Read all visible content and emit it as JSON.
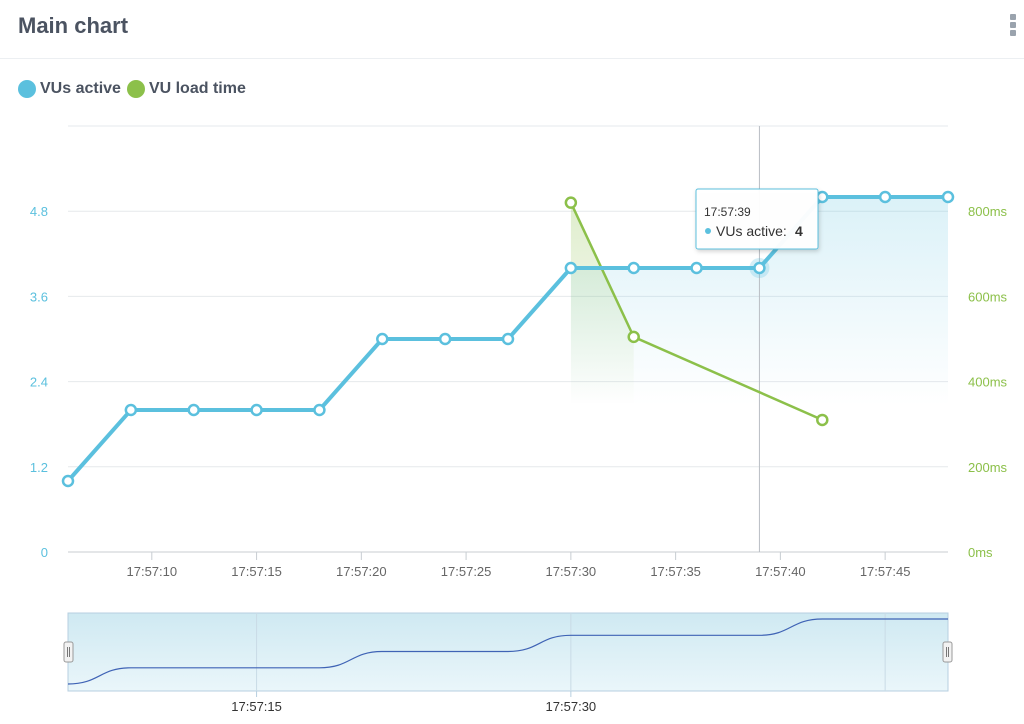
{
  "header": {
    "title": "Main chart",
    "menu_icon": "vertical-ellipsis-icon"
  },
  "colors": {
    "vus": "#5bc0de",
    "load": "#8cc04a",
    "nav_line": "#3f63b5",
    "grid": "#e6e9ec"
  },
  "legend": [
    {
      "label": "VUs active",
      "color": "#5bc0de"
    },
    {
      "label": "VU load time",
      "color": "#8cc04a"
    }
  ],
  "tooltip": {
    "time": "17:57:39",
    "series": "VUs active:",
    "value": "4"
  },
  "navigator": {
    "tick_labels": [
      "17:57:15",
      "17:57:30"
    ]
  },
  "chart_data": {
    "type": "line",
    "title": "Main chart",
    "x_tick_labels": [
      "17:57:10",
      "17:57:15",
      "17:57:20",
      "17:57:25",
      "17:57:30",
      "17:57:35",
      "17:57:40",
      "17:57:45"
    ],
    "y_left_ticks": [
      "0",
      "1.2",
      "2.4",
      "3.6",
      "4.8"
    ],
    "y_right_ticks": [
      "0ms",
      "200ms",
      "400ms",
      "600ms",
      "800ms"
    ],
    "y_left_range": [
      0,
      6
    ],
    "y_right_range": [
      0,
      1000
    ],
    "series": [
      {
        "name": "VUs active",
        "axis": "left",
        "x": [
          "17:57:06",
          "17:57:09",
          "17:57:12",
          "17:57:15",
          "17:57:18",
          "17:57:21",
          "17:57:24",
          "17:57:27",
          "17:57:30",
          "17:57:33",
          "17:57:36",
          "17:57:39",
          "17:57:42",
          "17:57:45",
          "17:57:48"
        ],
        "values": [
          1,
          2,
          2,
          2,
          2,
          3,
          3,
          3,
          4,
          4,
          4,
          4,
          5,
          5,
          5
        ]
      },
      {
        "name": "VU load time",
        "axis": "right",
        "x": [
          "17:57:30",
          "17:57:33",
          "17:57:42"
        ],
        "values": [
          820,
          505,
          310
        ]
      }
    ],
    "grid": true,
    "legend_position": "top-left"
  }
}
